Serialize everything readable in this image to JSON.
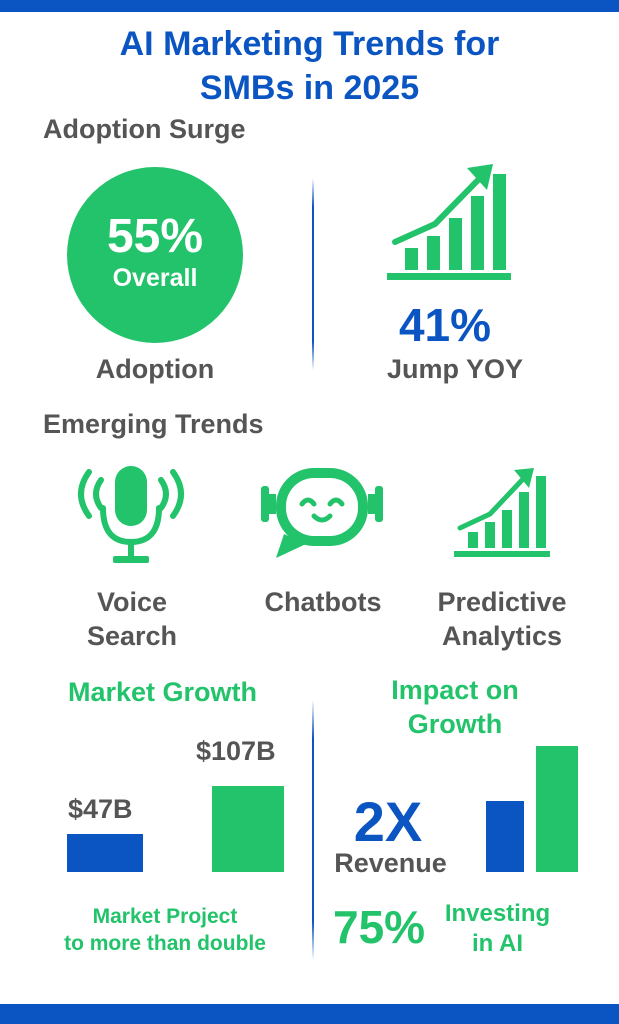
{
  "title": {
    "line1": "AI Marketing Trends for",
    "line2": "SMBs in 2025"
  },
  "adoption": {
    "heading": "Adoption Surge",
    "circle_value": "55%",
    "circle_label": "Overall",
    "caption": "Adoption",
    "jump_value": "41%",
    "jump_label": "Jump YOY",
    "icon": "growth-chart-icon"
  },
  "trends": {
    "heading": "Emerging Trends",
    "items": [
      {
        "label_line1": "Voice",
        "label_line2": "Search",
        "icon": "microphone-icon"
      },
      {
        "label_line1": "Chatbots",
        "label_line2": "",
        "icon": "chatbot-icon"
      },
      {
        "label_line1": "Predictive",
        "label_line2": "Analytics",
        "icon": "growth-chart-icon"
      }
    ]
  },
  "market_growth": {
    "heading": "Market Growth",
    "bars": [
      {
        "label": "$47B",
        "value": 47,
        "color": "#0b55c2"
      },
      {
        "label": "$107B",
        "value": 107,
        "color": "#22c36a"
      }
    ],
    "caption_line1": "Market Project",
    "caption_line2": "to more than double"
  },
  "impact": {
    "heading_line1": "Impact on",
    "heading_line2": "Growth",
    "revenue_value": "2X",
    "revenue_label": "Revenue",
    "invest_value": "75%",
    "invest_line1": "Investing",
    "invest_line2": "in AI"
  },
  "colors": {
    "blue": "#0b55c2",
    "green": "#22c36a",
    "gray": "#555555"
  }
}
